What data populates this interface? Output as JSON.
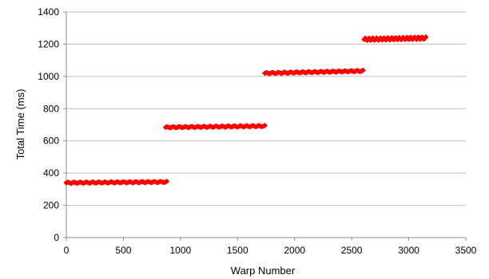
{
  "chart_data": {
    "type": "scatter",
    "title": "",
    "xlabel": "Warp Number",
    "ylabel": "Total Time (ms)",
    "xlim": [
      0,
      3500
    ],
    "ylim": [
      0,
      1400
    ],
    "x_ticks": [
      0,
      500,
      1000,
      1500,
      2000,
      2500,
      3000,
      3500
    ],
    "y_ticks": [
      0,
      200,
      400,
      600,
      800,
      1000,
      1200,
      1400
    ],
    "grid": "horizontal",
    "legend": "none",
    "marker_color": "#ff0000",
    "series": [
      {
        "segments": [
          {
            "x_start": 0,
            "x_end": 880,
            "y_start": 340,
            "y_end": 345,
            "y_jitter": 4
          },
          {
            "x_start": 870,
            "x_end": 1740,
            "y_start": 684,
            "y_end": 692,
            "y_jitter": 4
          },
          {
            "x_start": 1740,
            "x_end": 2600,
            "y_start": 1020,
            "y_end": 1034,
            "y_jitter": 4
          },
          {
            "x_start": 2610,
            "x_end": 3150,
            "y_start": 1230,
            "y_end": 1238,
            "y_jitter": 7
          }
        ]
      }
    ]
  }
}
